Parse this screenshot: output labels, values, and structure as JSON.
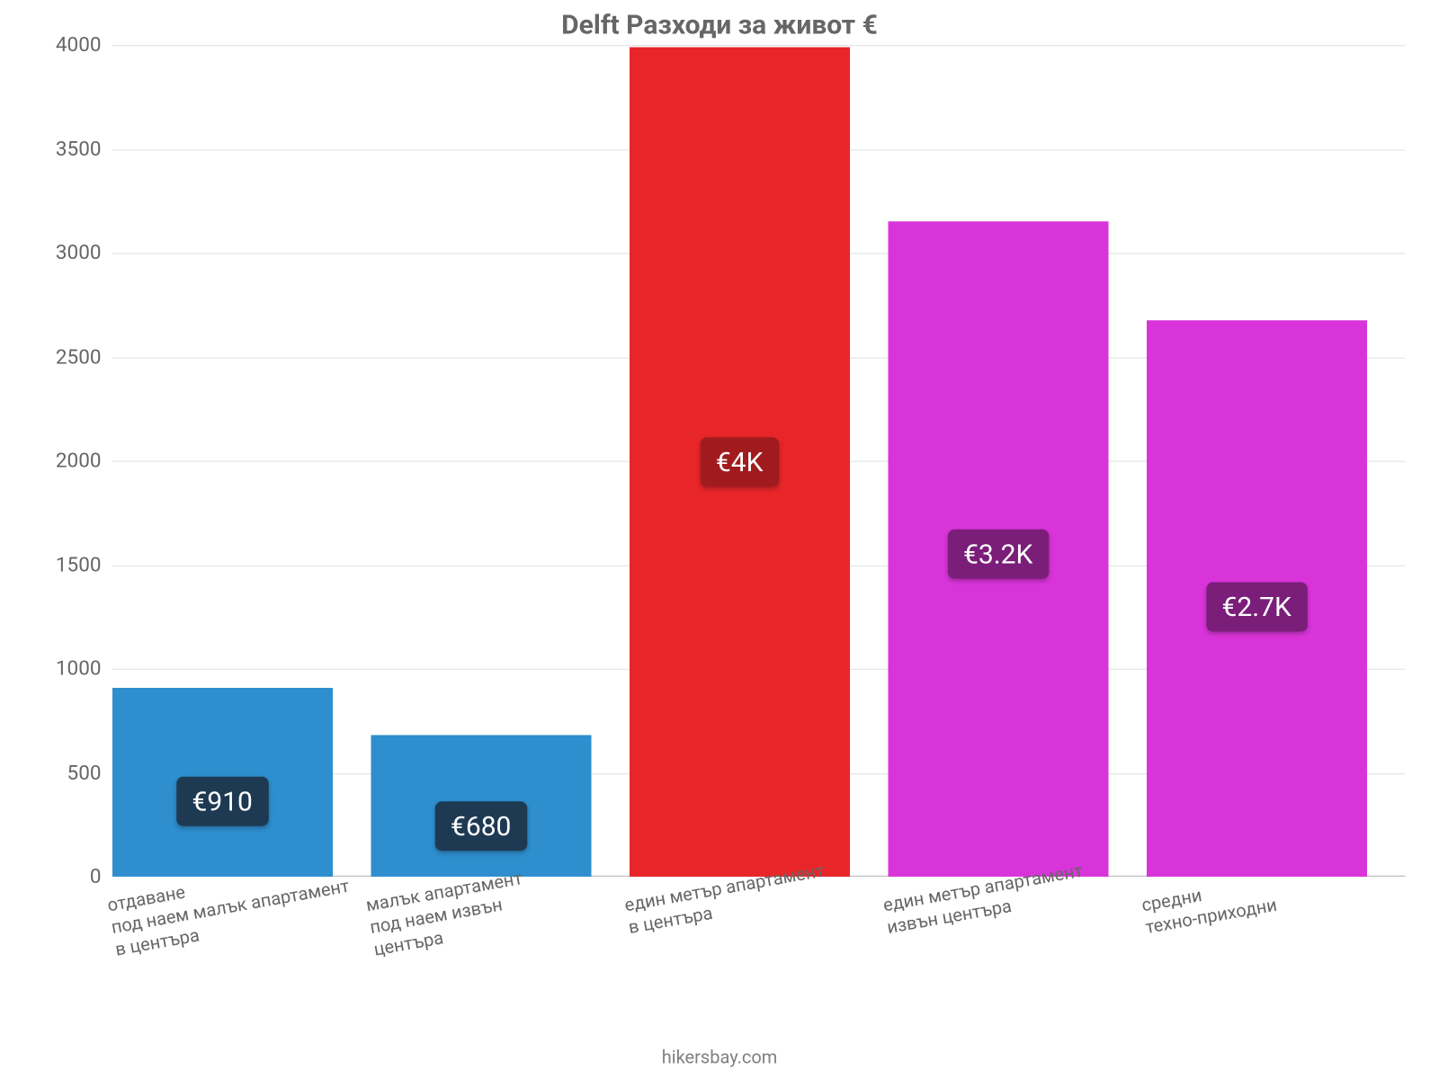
{
  "title": "Delft Разходи за живот €",
  "title_color": "#666666",
  "title_fontsize": 24,
  "attribution": "hikersbay.com",
  "attribution_color": "#808080",
  "attribution_fontsize": 16,
  "chart": {
    "type": "bar",
    "background_color": "#ffffff",
    "grid_color": "#e6e6e6",
    "axis_color": "#c0c0c0",
    "ylim": [
      0,
      4000
    ],
    "ytick_step": 500,
    "ytick_labels": [
      "0",
      "500",
      "1000",
      "1500",
      "2000",
      "2500",
      "3000",
      "3500",
      "4000"
    ],
    "ytick_fontsize": 18,
    "ytick_color": "#666666",
    "bar_width_ratio": 0.85,
    "bar_align": "left",
    "categories": [
      "отдаване\nпод наем малък апартамент\nв центъра",
      "малък апартамент\nпод наем извън\nцентъра",
      "един метър апартамент\nв центъра",
      "един метър апартамент\nизвън центъра",
      "средни\nтехно-приходни"
    ],
    "xlabel_fontsize": 16,
    "xlabel_color": "#666666",
    "xlabel_rotation_deg": -10,
    "values": [
      910,
      680,
      3990,
      3150,
      2675
    ],
    "value_labels": [
      "€910",
      "€680",
      "€4K",
      "€3.2K",
      "€2.7K"
    ],
    "value_label_fontsize": 24,
    "bar_colors": [
      "#2e8ece",
      "#2e8ece",
      "#e8262a",
      "#d934d9",
      "#d934d9"
    ],
    "badge_colors": [
      "#1e3a53",
      "#1e3a53",
      "#a11b1e",
      "#7a1e7a",
      "#7a1e7a"
    ],
    "value_label_vertical_ratio": 0.47
  }
}
